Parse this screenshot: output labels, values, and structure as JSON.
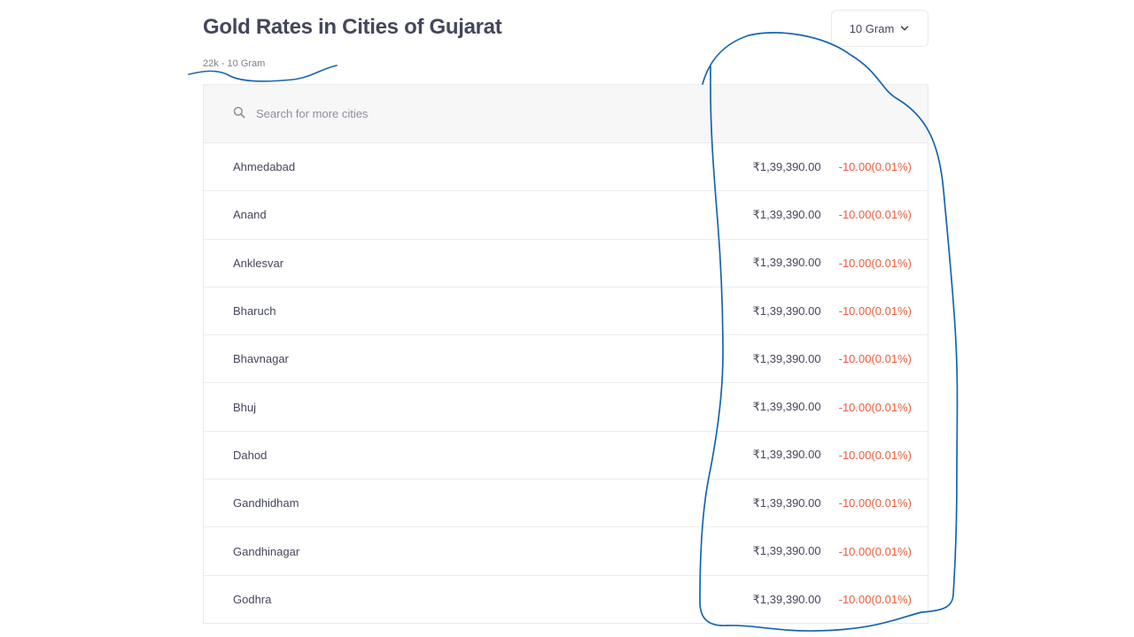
{
  "header": {
    "title": "Gold Rates in Cities of Gujarat",
    "subtitle": "22k - 10 Gram",
    "unit_selector": "10 Gram"
  },
  "search": {
    "placeholder": "Search for more cities"
  },
  "rows": [
    {
      "city": "Ahmedabad",
      "price": "₹1,39,390.00",
      "change": "-10.00(0.01%)"
    },
    {
      "city": "Anand",
      "price": "₹1,39,390.00",
      "change": "-10.00(0.01%)"
    },
    {
      "city": "Anklesvar",
      "price": "₹1,39,390.00",
      "change": "-10.00(0.01%)"
    },
    {
      "city": "Bharuch",
      "price": "₹1,39,390.00",
      "change": "-10.00(0.01%)"
    },
    {
      "city": "Bhavnagar",
      "price": "₹1,39,390.00",
      "change": "-10.00(0.01%)"
    },
    {
      "city": "Bhuj",
      "price": "₹1,39,390.00",
      "change": "-10.00(0.01%)"
    },
    {
      "city": "Dahod",
      "price": "₹1,39,390.00",
      "change": "-10.00(0.01%)"
    },
    {
      "city": "Gandhidham",
      "price": "₹1,39,390.00",
      "change": "-10.00(0.01%)"
    },
    {
      "city": "Gandhinagar",
      "price": "₹1,39,390.00",
      "change": "-10.00(0.01%)"
    },
    {
      "city": "Godhra",
      "price": "₹1,39,390.00",
      "change": "-10.00(0.01%)"
    }
  ],
  "colors": {
    "text": "#44475b",
    "negative_change": "#eb5b3c",
    "annotation_ink": "#1565b0"
  },
  "icons": {
    "search": "search-icon",
    "dropdown": "chevron-down-icon"
  }
}
